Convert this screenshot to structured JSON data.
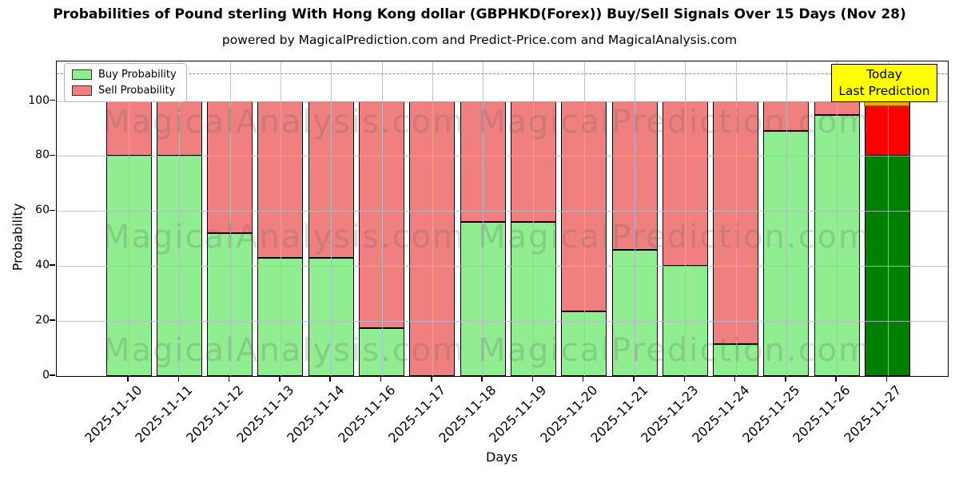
{
  "title": "Probabilities of Pound sterling With Hong Kong dollar (GBPHKD(Forex)) Buy/Sell Signals Over 15 Days (Nov 28)",
  "subtitle": "powered by MagicalPrediction.com and Predict-Price.com and MagicalAnalysis.com",
  "legend": {
    "buy_label": "Buy Probability",
    "sell_label": "Sell Probability"
  },
  "today_annotation": {
    "line1": "Today",
    "line2": "Last Prediction",
    "box_color": "#ffff00",
    "strip_color": "#ffa500"
  },
  "axes": {
    "ylabel": "Probability",
    "xlabel": "Days",
    "yticks": [
      0,
      20,
      40,
      60,
      80,
      100
    ]
  },
  "watermarks": [
    "MagicalAnalysis.com",
    "MagicalPrediction.com"
  ],
  "colors": {
    "buy": "#90ee90",
    "sell": "#f08080",
    "today_buy": "#008000",
    "today_sell": "#ff0000",
    "grid": "#b2bcc6",
    "dashed_line": "#8a8a8a"
  },
  "chart_data": {
    "type": "bar",
    "stacked": true,
    "grid": true,
    "legend_position": "upper-left",
    "categories": [
      "2025-11-10",
      "2025-11-11",
      "2025-11-12",
      "2025-11-13",
      "2025-11-14",
      "2025-11-16",
      "2025-11-17",
      "2025-11-18",
      "2025-11-19",
      "2025-11-20",
      "2025-11-21",
      "2025-11-23",
      "2025-11-24",
      "2025-11-25",
      "2025-11-26",
      "2025-11-27"
    ],
    "series": [
      {
        "name": "Buy Probability",
        "values": [
          80,
          80,
          52,
          43,
          43,
          17.5,
          0,
          56,
          56,
          23.5,
          46,
          40,
          11.5,
          89,
          95,
          80
        ]
      },
      {
        "name": "Sell Probability",
        "values": [
          20,
          20,
          48,
          57,
          57,
          82.5,
          100,
          44,
          44,
          76.5,
          54,
          60,
          88.5,
          11,
          5,
          20
        ]
      }
    ],
    "today": {
      "category": "2025-11-27",
      "buy": 80,
      "sell": 20
    },
    "xlabel": "Days",
    "ylabel": "Probability",
    "ylim": [
      0,
      114.4
    ],
    "dashed_line_y": 110
  }
}
